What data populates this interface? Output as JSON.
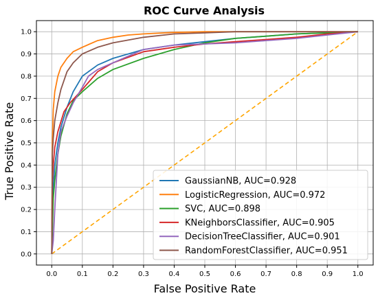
{
  "chart_data": {
    "type": "line",
    "title": "ROC Curve Analysis",
    "xlabel": "False Positive Rate",
    "ylabel": "True Positive Rate",
    "xlim": [
      -0.05,
      1.05
    ],
    "ylim": [
      -0.05,
      1.05
    ],
    "xticks": [
      "0.0",
      "0.1",
      "0.2",
      "0.3",
      "0.4",
      "0.5",
      "0.6",
      "0.7",
      "0.8",
      "0.9",
      "1.0"
    ],
    "yticks": [
      "0.0",
      "0.1",
      "0.2",
      "0.3",
      "0.4",
      "0.5",
      "0.6",
      "0.7",
      "0.8",
      "0.9",
      "1.0"
    ],
    "grid": true,
    "legend_position": "lower-right",
    "series": [
      {
        "name": "GaussianNB, AUC=0.928",
        "color": "#1f77b4",
        "x": [
          0,
          0.005,
          0.01,
          0.02,
          0.03,
          0.05,
          0.07,
          0.1,
          0.15,
          0.2,
          0.3,
          0.4,
          0.5,
          0.6,
          0.7,
          0.8,
          0.9,
          1.0
        ],
        "y": [
          0,
          0.3,
          0.4,
          0.5,
          0.57,
          0.66,
          0.73,
          0.8,
          0.85,
          0.88,
          0.92,
          0.94,
          0.955,
          0.97,
          0.98,
          0.99,
          0.995,
          1.0
        ]
      },
      {
        "name": "LogisticRegression, AUC=0.972",
        "color": "#ff7f0e",
        "x": [
          0,
          0.002,
          0.005,
          0.01,
          0.02,
          0.03,
          0.05,
          0.07,
          0.1,
          0.15,
          0.2,
          0.25,
          0.3,
          0.4,
          0.5,
          0.6,
          0.8,
          1.0
        ],
        "y": [
          0,
          0.5,
          0.65,
          0.73,
          0.8,
          0.84,
          0.88,
          0.91,
          0.93,
          0.96,
          0.975,
          0.985,
          0.99,
          0.997,
          1.0,
          1.0,
          1.0,
          1.0
        ]
      },
      {
        "name": "SVC, AUC=0.898",
        "color": "#2ca02c",
        "x": [
          0,
          0.005,
          0.01,
          0.02,
          0.03,
          0.05,
          0.07,
          0.1,
          0.15,
          0.2,
          0.3,
          0.4,
          0.5,
          0.6,
          0.7,
          0.8,
          0.9,
          1.0
        ],
        "y": [
          0,
          0.25,
          0.33,
          0.45,
          0.53,
          0.63,
          0.69,
          0.73,
          0.79,
          0.83,
          0.88,
          0.92,
          0.95,
          0.97,
          0.98,
          0.99,
          0.995,
          1.0
        ]
      },
      {
        "name": "KNeighborsClassifier, AUC=0.905",
        "color": "#d62728",
        "x": [
          0,
          0.002,
          0.005,
          0.01,
          0.02,
          0.04,
          0.06,
          0.1,
          0.15,
          0.2,
          0.3,
          0.4,
          0.5,
          0.6,
          0.7,
          0.8,
          0.9,
          1.0
        ],
        "y": [
          0,
          0.32,
          0.4,
          0.48,
          0.55,
          0.64,
          0.68,
          0.74,
          0.82,
          0.86,
          0.91,
          0.93,
          0.945,
          0.955,
          0.965,
          0.975,
          0.99,
          1.0
        ]
      },
      {
        "name": "DecisionTreeClassifier, AUC=0.901",
        "color": "#9467bd",
        "x": [
          0,
          0.005,
          0.01,
          0.02,
          0.03,
          0.05,
          0.07,
          0.1,
          0.12,
          0.15,
          0.2,
          0.25,
          0.3,
          0.4,
          0.5,
          0.6,
          0.7,
          0.8,
          0.9,
          1.0
        ],
        "y": [
          0,
          0.06,
          0.2,
          0.45,
          0.55,
          0.62,
          0.68,
          0.75,
          0.8,
          0.83,
          0.86,
          0.89,
          0.92,
          0.94,
          0.945,
          0.95,
          0.96,
          0.97,
          0.985,
          1.0
        ]
      },
      {
        "name": "RandomForestClassifier, AUC=0.951",
        "color": "#8c564b",
        "x": [
          0,
          0.002,
          0.005,
          0.01,
          0.02,
          0.03,
          0.05,
          0.07,
          0.1,
          0.15,
          0.2,
          0.3,
          0.4,
          0.5,
          0.6,
          0.7,
          0.8,
          0.9,
          1.0
        ],
        "y": [
          0,
          0.45,
          0.52,
          0.6,
          0.68,
          0.74,
          0.82,
          0.86,
          0.9,
          0.93,
          0.95,
          0.975,
          0.99,
          0.995,
          1.0,
          1.0,
          1.0,
          1.0,
          1.0
        ]
      }
    ],
    "reference_line": {
      "color": "#ffa500",
      "x": [
        0,
        1
      ],
      "y": [
        0,
        1
      ]
    }
  }
}
